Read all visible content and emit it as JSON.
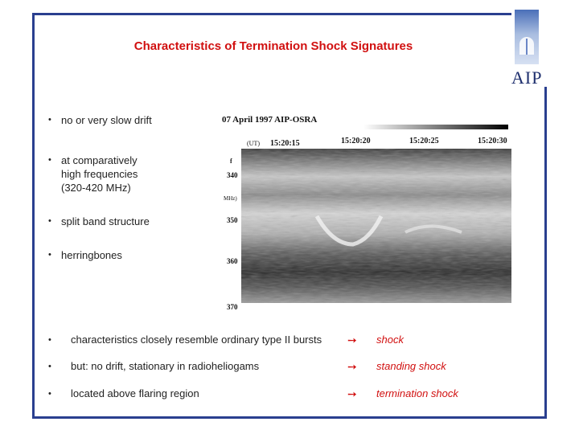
{
  "title": "Characteristics of Termination Shock Signatures",
  "logo": {
    "text": "AIP"
  },
  "bullets": [
    "no or very slow drift",
    "at comparatively\nhigh frequencies\n(320-420 MHz)",
    "split band structure",
    "herringbones"
  ],
  "bullet_marker": "•",
  "spectrogram": {
    "header": "07 April 1997 AIP-OSRA",
    "time_label": "(UT)",
    "times": [
      "15:20:15",
      "15:20:20",
      "15:20:25",
      "15:20:30"
    ],
    "freq_unit": "MHz)",
    "freq_ticks": [
      "340",
      "350",
      "360",
      "370"
    ]
  },
  "conclusions": [
    {
      "text": "characteristics closely resemble ordinary type II bursts",
      "result": "shock"
    },
    {
      "text": "but: no drift, stationary in radioheliogams",
      "result": "standing shock"
    },
    {
      "text": "located above flaring region",
      "result": "termination shock"
    }
  ],
  "arrow_glyph": "➙",
  "colors": {
    "title": "#d11010",
    "frame": "#2a3f8f",
    "result": "#d11010"
  }
}
